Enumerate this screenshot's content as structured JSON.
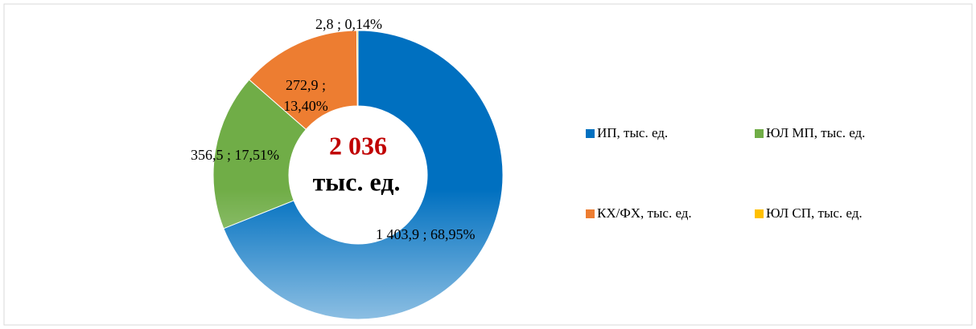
{
  "chart_data": {
    "type": "donut",
    "categories": [
      "ИП, тыс. ед.",
      "ЮЛ МП, тыс. ед.",
      "КХ/ФХ, тыс. ед.",
      "ЮЛ СП, тыс. ед."
    ],
    "values": [
      1403.9,
      356.5,
      272.9,
      2.8
    ],
    "value_labels": [
      "1 403,9 ; 68,95%",
      "356,5 ; 17,51%",
      "272,9 ; 13,40%",
      "2,8 ; 0,14%"
    ],
    "colors": [
      "#0070c0",
      "#70ad47",
      "#ed7d31",
      "#ffc000"
    ],
    "center_text": [
      "2 036",
      "тыс. ед."
    ],
    "legend": "right"
  }
}
